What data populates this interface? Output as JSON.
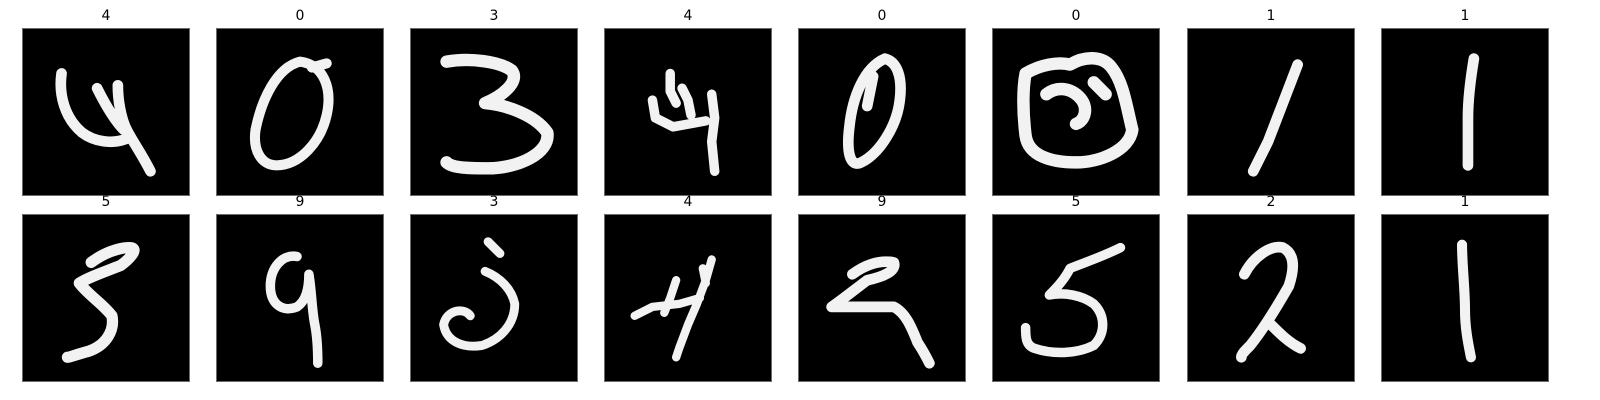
{
  "figure": {
    "background": "#ffffff",
    "image_background": "#000000",
    "stroke_color": "#f2f2f2",
    "rows": [
      {
        "cells": [
          {
            "label": "4"
          },
          {
            "label": "0"
          },
          {
            "label": "3"
          },
          {
            "label": "4"
          },
          {
            "label": "0"
          },
          {
            "label": "0"
          },
          {
            "label": "1"
          },
          {
            "label": "1"
          }
        ]
      },
      {
        "cells": [
          {
            "label": "5"
          },
          {
            "label": "9"
          },
          {
            "label": "3"
          },
          {
            "label": "4"
          },
          {
            "label": "9"
          },
          {
            "label": "5"
          },
          {
            "label": "2"
          },
          {
            "label": "1"
          }
        ]
      }
    ]
  }
}
